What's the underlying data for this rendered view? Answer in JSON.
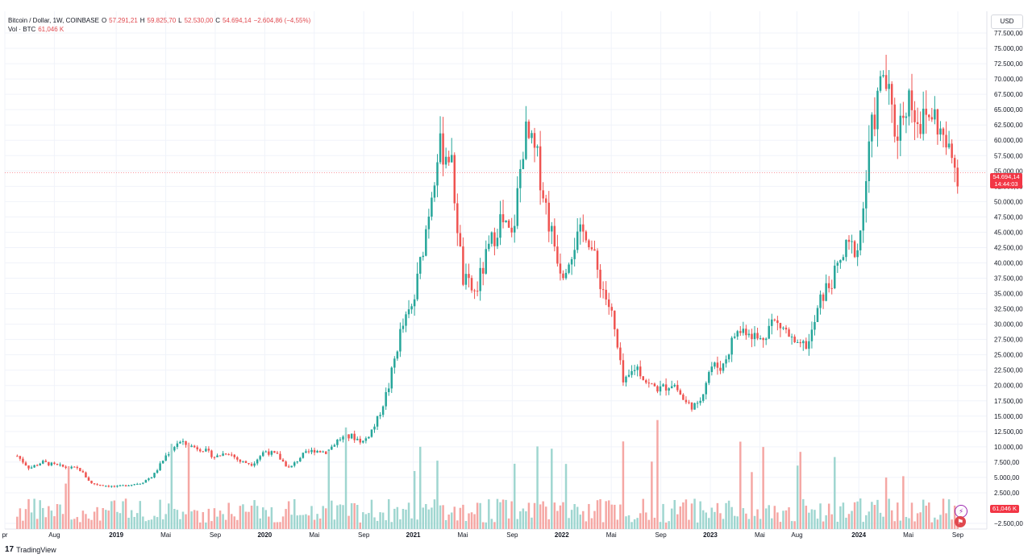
{
  "legend": {
    "symbol": "Bitcoin / Dollar, 1W, COINBASE",
    "open_label": "O",
    "open": "57.291,21",
    "high_label": "H",
    "high": "59.825,70",
    "low_label": "L",
    "low": "52.530,00",
    "close_label": "C",
    "close": "54.694,14",
    "change": "−2.604,86 (−4,55%)",
    "vol_label": "Vol · BTC",
    "vol_value": "61,046 K"
  },
  "currency_button": "USD",
  "brand": {
    "logo": "17",
    "name": "TradingView"
  },
  "price_tag": {
    "price": "54.694,14",
    "countdown": "14:44:03"
  },
  "volume_tag": "61,046 K",
  "colors": {
    "up": "#26a69a",
    "down": "#ef5350",
    "up_vol": "#9fd6d0",
    "down_vol": "#f5a7a4",
    "grid": "#f0f3fa",
    "tag": "#f23645"
  },
  "icons": [
    "lightning-icon",
    "flag-icon"
  ],
  "chart_data": {
    "type": "candlestick",
    "ylim": [
      -2500,
      80000
    ],
    "y_tick_labels": [
      "−2.500,00",
      "2.500,00",
      "5.000,00",
      "7.500,00",
      "10.000,00",
      "12.500,00",
      "15.000,00",
      "17.500,00",
      "20.000,00",
      "22.500,00",
      "25.000,00",
      "27.500,00",
      "30.000,00",
      "32.500,00",
      "35.000,00",
      "37.500,00",
      "40.000,00",
      "42.500,00",
      "45.000,00",
      "47.500,00",
      "50.000,00",
      "52.500,00",
      "55.000,00",
      "57.500,00",
      "60.000,00",
      "62.500,00",
      "65.000,00",
      "67.500,00",
      "70.000,00",
      "72.500,00",
      "75.000,00",
      "77.500,00"
    ],
    "x_tick_labels": [
      "pr",
      "Aug",
      "2019",
      "Mai",
      "Sep",
      "2020",
      "Mai",
      "Sep",
      "2021",
      "Mai",
      "Sep",
      "2022",
      "Mai",
      "Sep",
      "2023",
      "Mai",
      "Aug",
      "2024",
      "Mai",
      "Sep"
    ],
    "close_series": [
      [
        "2018-05",
        8500
      ],
      [
        "2018-06",
        6500
      ],
      [
        "2018-07",
        7500
      ],
      [
        "2018-08",
        7000
      ],
      [
        "2018-09",
        6600
      ],
      [
        "2018-10",
        6400
      ],
      [
        "2018-11",
        4000
      ],
      [
        "2018-12",
        3700
      ],
      [
        "2019-01",
        3450
      ],
      [
        "2019-02",
        3800
      ],
      [
        "2019-03",
        4100
      ],
      [
        "2019-04",
        5300
      ],
      [
        "2019-05",
        8500
      ],
      [
        "2019-06",
        10800
      ],
      [
        "2019-07",
        10100
      ],
      [
        "2019-08",
        9600
      ],
      [
        "2019-09",
        8300
      ],
      [
        "2019-10",
        9200
      ],
      [
        "2019-11",
        7600
      ],
      [
        "2019-12",
        7200
      ],
      [
        "2020-01",
        9350
      ],
      [
        "2020-02",
        8600
      ],
      [
        "2020-03",
        6400
      ],
      [
        "2020-04",
        8600
      ],
      [
        "2020-05",
        9450
      ],
      [
        "2020-06",
        9150
      ],
      [
        "2020-07",
        11300
      ],
      [
        "2020-08",
        11700
      ],
      [
        "2020-09",
        10800
      ],
      [
        "2020-10",
        13800
      ],
      [
        "2020-11",
        19700
      ],
      [
        "2020-12",
        29000
      ],
      [
        "2021-01",
        33100
      ],
      [
        "2021-02",
        45200
      ],
      [
        "2021-03",
        58800
      ],
      [
        "2021-04",
        57700
      ],
      [
        "2021-05",
        37300
      ],
      [
        "2021-06",
        35000
      ],
      [
        "2021-07",
        41500
      ],
      [
        "2021-08",
        47100
      ],
      [
        "2021-09",
        43800
      ],
      [
        "2021-10",
        61300
      ],
      [
        "2021-11",
        57000
      ],
      [
        "2021-12",
        46300
      ],
      [
        "2022-01",
        38500
      ],
      [
        "2022-02",
        43200
      ],
      [
        "2022-03",
        45500
      ],
      [
        "2022-04",
        37700
      ],
      [
        "2022-05",
        31800
      ],
      [
        "2022-06",
        19900
      ],
      [
        "2022-07",
        23300
      ],
      [
        "2022-08",
        20100
      ],
      [
        "2022-09",
        19400
      ],
      [
        "2022-10",
        20500
      ],
      [
        "2022-11",
        17100
      ],
      [
        "2022-12",
        16500
      ],
      [
        "2023-01",
        23100
      ],
      [
        "2023-02",
        23100
      ],
      [
        "2023-03",
        28500
      ],
      [
        "2023-04",
        29300
      ],
      [
        "2023-05",
        27200
      ],
      [
        "2023-06",
        30500
      ],
      [
        "2023-07",
        29200
      ],
      [
        "2023-08",
        25900
      ],
      [
        "2023-09",
        27000
      ],
      [
        "2023-10",
        34500
      ],
      [
        "2023-11",
        37700
      ],
      [
        "2023-12",
        42300
      ],
      [
        "2024-01",
        42600
      ],
      [
        "2024-02",
        61200
      ],
      [
        "2024-03",
        71300
      ],
      [
        "2024-04",
        60700
      ],
      [
        "2024-05",
        67500
      ],
      [
        "2024-06",
        62700
      ],
      [
        "2024-07",
        64600
      ],
      [
        "2024-08",
        59000
      ],
      [
        "2024-09",
        54694
      ]
    ]
  }
}
